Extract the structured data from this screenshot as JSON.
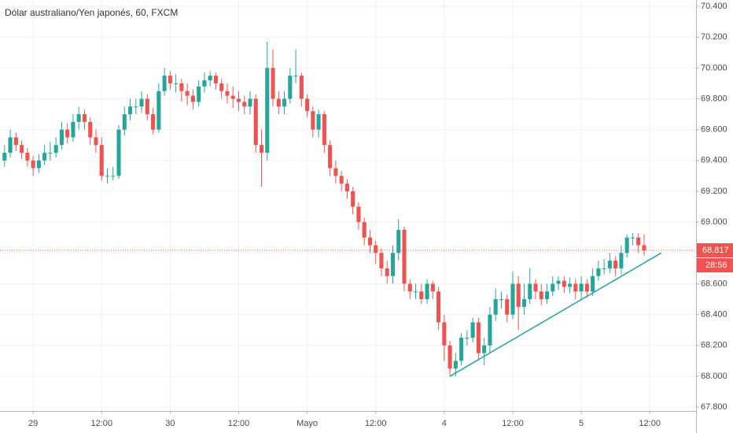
{
  "chart_data": {
    "type": "candlestick",
    "title": "Dólar australiano/Yen japonés, 60, FXCM",
    "up_color": "#26a69a",
    "down_color": "#ef5350",
    "grid": true,
    "xlim": [
      -0.8,
      121.1
    ],
    "ylim": [
      67.775,
      70.441
    ],
    "xticks": [
      {
        "value": 5,
        "label": "29"
      },
      {
        "value": 17,
        "label": "12:00"
      },
      {
        "value": 29,
        "label": "30"
      },
      {
        "value": 41,
        "label": "12:00"
      },
      {
        "value": 53,
        "label": "Mayo"
      },
      {
        "value": 65,
        "label": "12:00"
      },
      {
        "value": 77,
        "label": "4"
      },
      {
        "value": 89,
        "label": "12:00"
      },
      {
        "value": 101,
        "label": "5"
      },
      {
        "value": 113,
        "label": "12:00"
      }
    ],
    "yticks": [
      {
        "value": 67.8,
        "label": "67.800"
      },
      {
        "value": 68.0,
        "label": "68.000"
      },
      {
        "value": 68.2,
        "label": "68.200"
      },
      {
        "value": 68.4,
        "label": "68.400"
      },
      {
        "value": 68.6,
        "label": "68.600"
      },
      {
        "value": 68.8,
        "label": "68.800"
      },
      {
        "value": 69.0,
        "label": "69.000"
      },
      {
        "value": 69.2,
        "label": "69.200"
      },
      {
        "value": 69.4,
        "label": "69.400"
      },
      {
        "value": 69.6,
        "label": "69.600"
      },
      {
        "value": 69.8,
        "label": "69.800"
      },
      {
        "value": 70.0,
        "label": "70.000"
      },
      {
        "value": 70.2,
        "label": "70.200"
      },
      {
        "value": 70.4,
        "label": "70.400"
      }
    ],
    "open": [
      69.4,
      69.45,
      69.55,
      69.5,
      69.45,
      69.4,
      69.35,
      69.4,
      69.45,
      69.45,
      69.5,
      69.6,
      69.55,
      69.65,
      69.7,
      69.65,
      69.55,
      69.5,
      69.3,
      69.3,
      69.3,
      69.6,
      69.7,
      69.75,
      69.75,
      69.8,
      69.7,
      69.6,
      69.85,
      69.95,
      69.9,
      69.9,
      69.85,
      69.82,
      69.78,
      69.88,
      69.92,
      69.95,
      69.9,
      69.85,
      69.82,
      69.8,
      69.78,
      69.75,
      69.8,
      69.5,
      69.45,
      70.0,
      69.8,
      69.75,
      69.8,
      69.95,
      69.95,
      69.8,
      69.72,
      69.6,
      69.7,
      69.5,
      69.35,
      69.3,
      69.25,
      69.2,
      69.1,
      69.0,
      68.9,
      68.85,
      68.8,
      68.7,
      68.65,
      68.8,
      68.95,
      68.6,
      68.55,
      68.55,
      68.5,
      68.6,
      68.55,
      68.35,
      68.2,
      68.05,
      68.1,
      68.25,
      68.25,
      68.35,
      68.15,
      68.2,
      68.4,
      68.5,
      68.5,
      68.4,
      68.6,
      68.45,
      68.5,
      68.6,
      68.55,
      68.5,
      68.55,
      68.6,
      68.62,
      68.58,
      68.6,
      68.55,
      68.6,
      68.55,
      68.65,
      68.7,
      68.7,
      68.75,
      68.7,
      68.8,
      68.9,
      68.9,
      68.85
    ],
    "high": [
      69.5,
      69.6,
      69.58,
      69.53,
      69.48,
      69.43,
      69.44,
      69.5,
      69.52,
      69.55,
      69.65,
      69.64,
      69.7,
      69.75,
      69.73,
      69.68,
      69.6,
      69.55,
      69.35,
      69.36,
      69.63,
      69.75,
      69.8,
      69.8,
      69.85,
      69.83,
      69.74,
      69.9,
      70.0,
      69.98,
      69.96,
      69.93,
      69.9,
      69.86,
      69.92,
      69.97,
      69.98,
      69.97,
      69.93,
      69.9,
      69.88,
      69.85,
      69.82,
      69.85,
      69.83,
      69.6,
      70.17,
      70.12,
      69.85,
      69.85,
      70.0,
      70.12,
      69.97,
      69.83,
      69.75,
      69.73,
      69.72,
      69.53,
      69.4,
      69.33,
      69.28,
      69.23,
      69.13,
      69.03,
      68.95,
      68.88,
      68.83,
      68.75,
      68.85,
      69.02,
      68.97,
      68.63,
      68.6,
      68.6,
      68.63,
      68.62,
      68.58,
      68.4,
      68.23,
      68.15,
      68.28,
      68.3,
      68.38,
      68.38,
      68.25,
      68.45,
      68.57,
      68.55,
      68.53,
      68.68,
      68.65,
      68.6,
      68.7,
      68.63,
      68.6,
      68.6,
      68.65,
      68.65,
      68.65,
      68.64,
      68.63,
      68.65,
      68.63,
      68.7,
      68.75,
      68.76,
      68.8,
      68.78,
      68.85,
      68.92,
      68.93,
      68.93,
      68.92
    ],
    "low": [
      69.36,
      69.42,
      69.46,
      69.41,
      69.36,
      69.3,
      69.32,
      69.37,
      69.4,
      69.42,
      69.47,
      69.51,
      69.52,
      69.6,
      69.6,
      69.5,
      69.45,
      69.27,
      69.25,
      69.27,
      69.28,
      69.56,
      69.66,
      69.7,
      69.71,
      69.66,
      69.57,
      69.58,
      69.82,
      69.86,
      69.84,
      69.78,
      69.76,
      69.73,
      69.75,
      69.84,
      69.88,
      69.86,
      69.8,
      69.77,
      69.74,
      69.72,
      69.7,
      69.7,
      69.45,
      69.23,
      69.4,
      69.75,
      69.7,
      69.7,
      69.77,
      69.9,
      69.75,
      69.68,
      69.55,
      69.55,
      69.45,
      69.3,
      69.25,
      69.2,
      69.15,
      69.05,
      68.95,
      68.85,
      68.8,
      68.73,
      68.65,
      68.6,
      68.6,
      68.75,
      68.55,
      68.5,
      68.5,
      68.47,
      68.47,
      68.5,
      68.3,
      68.1,
      68.0,
      68.0,
      68.07,
      68.2,
      68.22,
      68.1,
      68.07,
      68.15,
      68.36,
      68.44,
      68.35,
      68.37,
      68.3,
      68.4,
      68.47,
      68.5,
      68.46,
      68.47,
      68.52,
      68.56,
      68.54,
      68.54,
      68.5,
      68.5,
      68.51,
      68.52,
      68.62,
      68.66,
      68.67,
      68.65,
      68.66,
      68.77,
      68.85,
      68.8,
      68.78
    ],
    "close": [
      69.45,
      69.55,
      69.5,
      69.45,
      69.4,
      69.35,
      69.4,
      69.45,
      69.45,
      69.5,
      69.6,
      69.55,
      69.65,
      69.7,
      69.65,
      69.55,
      69.5,
      69.3,
      69.3,
      69.3,
      69.6,
      69.7,
      69.75,
      69.75,
      69.8,
      69.7,
      69.6,
      69.85,
      69.95,
      69.9,
      69.9,
      69.85,
      69.82,
      69.78,
      69.88,
      69.92,
      69.95,
      69.9,
      69.85,
      69.82,
      69.8,
      69.78,
      69.75,
      69.8,
      69.5,
      69.45,
      70.0,
      69.8,
      69.75,
      69.8,
      69.95,
      69.95,
      69.8,
      69.72,
      69.6,
      69.7,
      69.5,
      69.35,
      69.3,
      69.25,
      69.2,
      69.1,
      69.0,
      68.9,
      68.85,
      68.8,
      68.7,
      68.65,
      68.8,
      68.95,
      68.6,
      68.55,
      68.55,
      68.5,
      68.6,
      68.55,
      68.35,
      68.2,
      68.05,
      68.1,
      68.25,
      68.25,
      68.35,
      68.15,
      68.2,
      68.4,
      68.5,
      68.5,
      68.4,
      68.6,
      68.45,
      68.5,
      68.6,
      68.55,
      68.5,
      68.55,
      68.6,
      68.62,
      68.58,
      68.6,
      68.55,
      68.6,
      68.55,
      68.65,
      68.7,
      68.7,
      68.75,
      68.7,
      68.8,
      68.9,
      68.9,
      68.85,
      68.817
    ],
    "trendline": {
      "x": [
        78,
        115
      ],
      "y": [
        68.0,
        68.8
      ],
      "color": "#26a69a"
    },
    "last_price": 68.817,
    "countdown": "28:56"
  }
}
